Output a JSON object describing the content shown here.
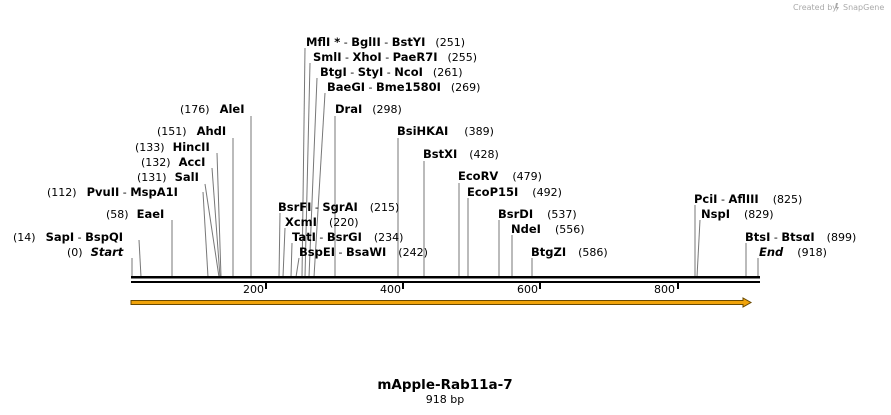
{
  "credit": "Created by",
  "credit_brand": "SnapGene",
  "title": "mApple-Rab11a-7",
  "length_label": "918 bp",
  "ticks": [
    "200",
    "400",
    "600",
    "800"
  ],
  "labels": [
    {
      "pos": "(14)",
      "names": [
        "SapI",
        "BspQI"
      ]
    },
    {
      "pos": "(0)",
      "names": [
        "Start"
      ]
    },
    {
      "pos": "(58)",
      "names": [
        "EaeI"
      ]
    },
    {
      "pos": "(112)",
      "names": [
        "PvuII",
        "MspA1I"
      ]
    },
    {
      "pos": "(131)",
      "names": [
        "SalI"
      ]
    },
    {
      "pos": "(132)",
      "names": [
        "AccI"
      ]
    },
    {
      "pos": "(133)",
      "names": [
        "HincII"
      ]
    },
    {
      "pos": "(151)",
      "names": [
        "AhdI"
      ]
    },
    {
      "pos": "(176)",
      "names": [
        "AleI"
      ]
    },
    {
      "pos": "(251)",
      "names": [
        "MflI *",
        "BglII",
        "BstYI"
      ]
    },
    {
      "pos": "(255)",
      "names": [
        "SmlI",
        "XhoI",
        "PaeR7I"
      ]
    },
    {
      "pos": "(261)",
      "names": [
        "BtgI",
        "StyI",
        "NcoI"
      ]
    },
    {
      "pos": "(269)",
      "names": [
        "BaeGI",
        "Bme1580I"
      ]
    },
    {
      "pos": "(298)",
      "names": [
        "DraI"
      ]
    },
    {
      "pos": "(215)",
      "names": [
        "BsrFI",
        "SgrAI"
      ]
    },
    {
      "pos": "(220)",
      "names": [
        "XcmI"
      ]
    },
    {
      "pos": "(234)",
      "names": [
        "TatI",
        "BsrGI"
      ]
    },
    {
      "pos": "(242)",
      "names": [
        "BspEI",
        "BsaWI"
      ]
    },
    {
      "pos": "(389)",
      "names": [
        "BsiHKAI"
      ]
    },
    {
      "pos": "(428)",
      "names": [
        "BstXI"
      ]
    },
    {
      "pos": "(479)",
      "names": [
        "EcoRV"
      ]
    },
    {
      "pos": "(492)",
      "names": [
        "EcoP15I"
      ]
    },
    {
      "pos": "(537)",
      "names": [
        "BsrDI"
      ]
    },
    {
      "pos": "(556)",
      "names": [
        "NdeI"
      ]
    },
    {
      "pos": "(586)",
      "names": [
        "BtgZI"
      ]
    },
    {
      "pos": "(825)",
      "names": [
        "PciI",
        "AflIII"
      ]
    },
    {
      "pos": "(829)",
      "names": [
        "NspI"
      ]
    },
    {
      "pos": "(899)",
      "names": [
        "BtsI",
        "BtsαI"
      ]
    },
    {
      "pos": "(918)",
      "names": [
        "End"
      ]
    }
  ],
  "colors": {
    "feature_fill": "#f0a30a",
    "feature_stroke": "#6b4a00",
    "backbone": "#000000",
    "leader": "#777777"
  }
}
